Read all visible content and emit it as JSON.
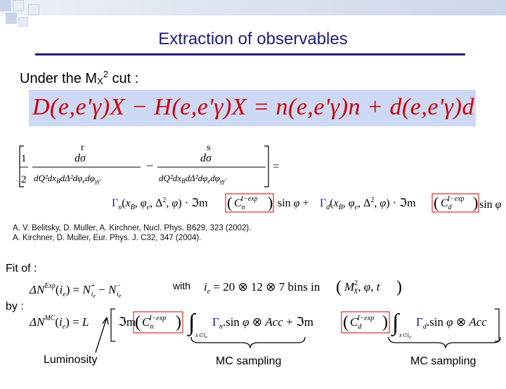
{
  "slide": {
    "title": "Extraction of observables",
    "under_prefix": "Under the M",
    "under_sub": "X",
    "under_sup": "2",
    "under_suffix": " cut :",
    "main_equation": "D(e,e'γ)X − H(e,e'γ)X = n(e,e'γ)n + d(e,e'γ)d",
    "asym_lhs": {
      "half": "1/2",
      "frac1_num": "dσ",
      "frac1_arrow": "r",
      "frac1_den": "dQ²dx_B dΔ²dφ_e dφ_γγ'",
      "minus": "−",
      "frac2_num": "dσ",
      "frac2_arrow": "s",
      "frac2_den": "dQ²dx_B dΔ²dφ_e dφ_γγ'",
      "equals": "="
    },
    "asym_rhs": "Γ_n(x_B, φ_e, Δ², φ) · ℑm(C_n^{I−exp}) sin φ + Γ_d(x_B, φ_e, Δ², φ) · ℑm(C_d^{I−exp}) sin φ",
    "references": [
      "A. V. Belitsky, D. Muller, A. Kirchner, Nucl. Phys. B629, 323 (2002).",
      "A. Kirchner, D. Muller, Eur. Phys. J. C32, 347 (2004)."
    ],
    "fit_of_label": "Fit of :",
    "fit_eq": "ΔN^Exp(i_e) = N⁺_{i_e} − N⁻_{i_e}",
    "with_label": "with",
    "with_eq": "i_e = 20 ⊗ 12 ⊗ 7 bins in (M²_X, φ, t)",
    "by_label": "by :",
    "mc_eq": "ΔN^MC(i_e) = L [ ℑm(C_n^{I−exp}) ∫_{x⊂i_e} Γ_n . sin φ ⊗ Acc + ℑm(C_d^{I−exp}) ∫_{x⊂i_e} Γ_d . sin φ ⊗ Acc ]",
    "luminosity_label": "Luminosity",
    "mc_sampling_1": "MC sampling",
    "mc_sampling_2": "MC sampling",
    "colors": {
      "title": "#1c1c7a",
      "equation_red": "#d10000",
      "equation_box": "#cdd8f5",
      "gamma_blue": "#1c1c9a"
    }
  }
}
